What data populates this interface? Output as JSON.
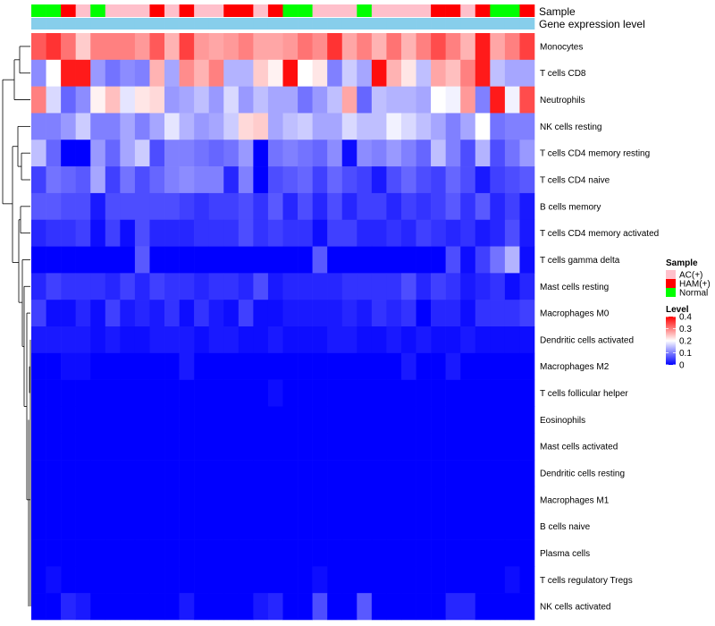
{
  "chart_data": {
    "type": "heatmap",
    "annotation_labels": {
      "sample": "Sample",
      "expression": "Gene expression level"
    },
    "rows": [
      "Monocytes",
      "T cells CD8",
      "Neutrophils",
      "NK cells resting",
      "T cells CD4 memory resting",
      "T cells CD4 naive",
      "B cells memory",
      "T cells CD4 memory activated",
      "T cells gamma delta",
      "Mast cells resting",
      "Macrophages M0",
      "Dendritic cells activated",
      "Macrophages M2",
      "T cells follicular helper",
      "Eosinophils",
      "Mast cells activated",
      "Dendritic cells resting",
      "Macrophages M1",
      "B cells naive",
      "Plasma cells",
      "T cells regulatory  Tregs",
      "NK cells activated"
    ],
    "columns": 34,
    "sample_groups": [
      "N",
      "N",
      "H",
      "A",
      "N",
      "A",
      "A",
      "A",
      "H",
      "A",
      "H",
      "A",
      "A",
      "H",
      "H",
      "A",
      "H",
      "N",
      "N",
      "A",
      "A",
      "A",
      "N",
      "A",
      "A",
      "A",
      "A",
      "H",
      "H",
      "A",
      "H",
      "N",
      "N",
      "H"
    ],
    "expression_level_colors": [
      "#87ceeb",
      "#87ceeb",
      "#87ceeb",
      "#87ceeb",
      "#87ceeb",
      "#87ceeb",
      "#87ceeb",
      "#87ceeb",
      "#87ceeb",
      "#87ceeb",
      "#87ceeb",
      "#87ceeb",
      "#87ceeb",
      "#87ceeb",
      "#87ceeb",
      "#87ceeb",
      "#87ceeb",
      "#87ceeb",
      "#87ceeb",
      "#87ceeb",
      "#87ceeb",
      "#87ceeb",
      "#87ceeb",
      "#87ceeb",
      "#87ceeb",
      "#87ceeb",
      "#87ceeb",
      "#87ceeb",
      "#87ceeb",
      "#87ceeb",
      "#87ceeb",
      "#87ceeb",
      "#87ceeb",
      "#87ceeb"
    ],
    "values": [
      [
        0.33,
        0.36,
        0.31,
        0.24,
        0.3,
        0.3,
        0.3,
        0.28,
        0.33,
        0.26,
        0.35,
        0.28,
        0.27,
        0.28,
        0.3,
        0.27,
        0.27,
        0.28,
        0.31,
        0.29,
        0.36,
        0.27,
        0.3,
        0.26,
        0.31,
        0.26,
        0.3,
        0.34,
        0.3,
        0.26,
        0.38,
        0.27,
        0.3,
        0.35
      ],
      [
        0.11,
        0.2,
        0.38,
        0.38,
        0.12,
        0.09,
        0.11,
        0.1,
        0.26,
        0.13,
        0.29,
        0.26,
        0.3,
        0.14,
        0.14,
        0.24,
        0.21,
        0.39,
        0.2,
        0.22,
        0.1,
        0.16,
        0.13,
        0.39,
        0.26,
        0.22,
        0.15,
        0.27,
        0.25,
        0.3,
        0.38,
        0.15,
        0.13,
        0.13
      ],
      [
        0.3,
        0.17,
        0.08,
        0.11,
        0.21,
        0.25,
        0.18,
        0.22,
        0.23,
        0.12,
        0.13,
        0.15,
        0.12,
        0.17,
        0.12,
        0.15,
        0.13,
        0.13,
        0.09,
        0.12,
        0.15,
        0.27,
        0.08,
        0.15,
        0.14,
        0.14,
        0.13,
        0.2,
        0.19,
        0.28,
        0.1,
        0.38,
        0.19,
        0.34
      ],
      [
        0.1,
        0.1,
        0.12,
        0.16,
        0.1,
        0.1,
        0.13,
        0.1,
        0.13,
        0.18,
        0.14,
        0.12,
        0.13,
        0.16,
        0.23,
        0.24,
        0.13,
        0.15,
        0.16,
        0.13,
        0.13,
        0.17,
        0.15,
        0.15,
        0.19,
        0.17,
        0.15,
        0.13,
        0.1,
        0.13,
        0.2,
        0.09,
        0.1,
        0.1
      ],
      [
        0.15,
        0.08,
        0.0,
        0.0,
        0.12,
        0.08,
        0.13,
        0.16,
        0.06,
        0.1,
        0.1,
        0.09,
        0.08,
        0.09,
        0.12,
        0.0,
        0.09,
        0.1,
        0.09,
        0.08,
        0.11,
        0.01,
        0.11,
        0.1,
        0.12,
        0.1,
        0.08,
        0.15,
        0.1,
        0.06,
        0.14,
        0.06,
        0.09,
        0.12
      ],
      [
        0.05,
        0.09,
        0.08,
        0.07,
        0.13,
        0.05,
        0.09,
        0.06,
        0.08,
        0.1,
        0.11,
        0.1,
        0.1,
        0.03,
        0.1,
        0.0,
        0.06,
        0.07,
        0.08,
        0.05,
        0.08,
        0.06,
        0.05,
        0.02,
        0.06,
        0.08,
        0.06,
        0.05,
        0.08,
        0.06,
        0.02,
        0.05,
        0.06,
        0.07
      ],
      [
        0.07,
        0.07,
        0.06,
        0.06,
        0.02,
        0.06,
        0.06,
        0.06,
        0.06,
        0.06,
        0.05,
        0.04,
        0.05,
        0.05,
        0.06,
        0.04,
        0.07,
        0.03,
        0.06,
        0.03,
        0.06,
        0.03,
        0.05,
        0.05,
        0.03,
        0.05,
        0.04,
        0.05,
        0.07,
        0.04,
        0.07,
        0.03,
        0.05,
        0.02
      ],
      [
        0.03,
        0.04,
        0.04,
        0.05,
        0.01,
        0.05,
        0.01,
        0.06,
        0.03,
        0.03,
        0.03,
        0.04,
        0.04,
        0.04,
        0.06,
        0.04,
        0.05,
        0.04,
        0.04,
        0.01,
        0.05,
        0.05,
        0.03,
        0.03,
        0.04,
        0.03,
        0.05,
        0.04,
        0.03,
        0.04,
        0.02,
        0.03,
        0.06,
        0.02
      ],
      [
        0.0,
        0.0,
        0.0,
        0.0,
        0.0,
        0.0,
        0.0,
        0.07,
        0.0,
        0.0,
        0.0,
        0.0,
        0.0,
        0.0,
        0.0,
        0.0,
        0.0,
        0.0,
        0.0,
        0.07,
        0.0,
        0.0,
        0.0,
        0.0,
        0.0,
        0.0,
        0.0,
        0.0,
        0.06,
        0.01,
        0.05,
        0.09,
        0.14,
        0.01
      ],
      [
        0.03,
        0.05,
        0.04,
        0.04,
        0.04,
        0.03,
        0.05,
        0.03,
        0.05,
        0.04,
        0.04,
        0.03,
        0.04,
        0.04,
        0.03,
        0.06,
        0.02,
        0.03,
        0.03,
        0.03,
        0.03,
        0.04,
        0.04,
        0.04,
        0.04,
        0.06,
        0.03,
        0.05,
        0.04,
        0.02,
        0.03,
        0.04,
        0.01,
        0.03
      ],
      [
        0.05,
        0.01,
        0.01,
        0.03,
        0.01,
        0.05,
        0.02,
        0.03,
        0.02,
        0.04,
        0.01,
        0.04,
        0.02,
        0.01,
        0.05,
        0.01,
        0.01,
        0.02,
        0.02,
        0.02,
        0.02,
        0.03,
        0.02,
        0.04,
        0.03,
        0.04,
        0.0,
        0.03,
        0.03,
        0.01,
        0.04,
        0.04,
        0.04,
        0.05
      ],
      [
        0.02,
        0.02,
        0.02,
        0.02,
        0.01,
        0.02,
        0.01,
        0.01,
        0.02,
        0.02,
        0.02,
        0.01,
        0.02,
        0.02,
        0.01,
        0.01,
        0.02,
        0.01,
        0.01,
        0.01,
        0.02,
        0.02,
        0.01,
        0.01,
        0.02,
        0.01,
        0.02,
        0.01,
        0.01,
        0.02,
        0.01,
        0.01,
        0.01,
        0.01
      ],
      [
        0.0,
        0.0,
        0.01,
        0.01,
        0.0,
        0.0,
        0.0,
        0.0,
        0.0,
        0.0,
        0.02,
        0.0,
        0.0,
        0.0,
        0.0,
        0.0,
        0.0,
        0.0,
        0.0,
        0.0,
        0.0,
        0.0,
        0.0,
        0.0,
        0.0,
        0.02,
        0.0,
        0.0,
        0.02,
        0.0,
        0.0,
        0.0,
        0.0,
        0.0
      ],
      [
        0.0,
        0.0,
        0.0,
        0.0,
        0.0,
        0.0,
        0.0,
        0.0,
        0.0,
        0.0,
        0.0,
        0.0,
        0.0,
        0.0,
        0.0,
        0.0,
        0.01,
        0.0,
        0.0,
        0.0,
        0.0,
        0.0,
        0.0,
        0.0,
        0.0,
        0.0,
        0.0,
        0.0,
        0.0,
        0.0,
        0.0,
        0.0,
        0.0,
        0.0
      ],
      [
        0.0,
        0.0,
        0.0,
        0.0,
        0.0,
        0.0,
        0.0,
        0.0,
        0.0,
        0.0,
        0.0,
        0.0,
        0.0,
        0.0,
        0.0,
        0.0,
        0.0,
        0.0,
        0.0,
        0.0,
        0.0,
        0.0,
        0.0,
        0.0,
        0.0,
        0.0,
        0.0,
        0.0,
        0.0,
        0.0,
        0.0,
        0.0,
        0.0,
        0.0
      ],
      [
        0.0,
        0.0,
        0.0,
        0.0,
        0.0,
        0.0,
        0.0,
        0.0,
        0.0,
        0.0,
        0.0,
        0.0,
        0.0,
        0.0,
        0.0,
        0.0,
        0.0,
        0.0,
        0.0,
        0.0,
        0.0,
        0.0,
        0.0,
        0.0,
        0.0,
        0.0,
        0.0,
        0.0,
        0.0,
        0.0,
        0.0,
        0.0,
        0.0,
        0.0
      ],
      [
        0.0,
        0.0,
        0.0,
        0.0,
        0.0,
        0.0,
        0.0,
        0.0,
        0.0,
        0.0,
        0.0,
        0.0,
        0.0,
        0.0,
        0.0,
        0.0,
        0.0,
        0.0,
        0.0,
        0.0,
        0.0,
        0.0,
        0.0,
        0.0,
        0.0,
        0.0,
        0.0,
        0.0,
        0.0,
        0.0,
        0.0,
        0.0,
        0.0,
        0.0
      ],
      [
        0.0,
        0.0,
        0.0,
        0.0,
        0.0,
        0.0,
        0.0,
        0.0,
        0.0,
        0.0,
        0.0,
        0.0,
        0.0,
        0.0,
        0.0,
        0.0,
        0.0,
        0.0,
        0.0,
        0.0,
        0.0,
        0.0,
        0.0,
        0.0,
        0.0,
        0.0,
        0.0,
        0.0,
        0.0,
        0.0,
        0.0,
        0.0,
        0.0,
        0.0
      ],
      [
        0.0,
        0.0,
        0.0,
        0.0,
        0.0,
        0.0,
        0.0,
        0.0,
        0.0,
        0.0,
        0.0,
        0.0,
        0.0,
        0.0,
        0.0,
        0.0,
        0.0,
        0.0,
        0.0,
        0.0,
        0.0,
        0.0,
        0.0,
        0.0,
        0.0,
        0.0,
        0.0,
        0.0,
        0.0,
        0.0,
        0.0,
        0.0,
        0.0,
        0.0
      ],
      [
        0.0,
        0.0,
        0.0,
        0.0,
        0.0,
        0.0,
        0.0,
        0.0,
        0.0,
        0.0,
        0.0,
        0.0,
        0.0,
        0.0,
        0.0,
        0.0,
        0.0,
        0.0,
        0.0,
        0.0,
        0.0,
        0.0,
        0.0,
        0.0,
        0.0,
        0.0,
        0.0,
        0.0,
        0.0,
        0.0,
        0.0,
        0.0,
        0.0,
        0.0
      ],
      [
        0.0,
        0.01,
        0.0,
        0.0,
        0.0,
        0.0,
        0.0,
        0.0,
        0.0,
        0.0,
        0.0,
        0.0,
        0.0,
        0.0,
        0.0,
        0.0,
        0.0,
        0.0,
        0.0,
        0.01,
        0.0,
        0.0,
        0.0,
        0.0,
        0.0,
        0.0,
        0.0,
        0.0,
        0.0,
        0.0,
        0.0,
        0.0,
        0.01,
        0.0
      ],
      [
        0.0,
        0.0,
        0.03,
        0.02,
        0.0,
        0.0,
        0.0,
        0.0,
        0.0,
        0.0,
        0.02,
        0.0,
        0.0,
        0.0,
        0.0,
        0.02,
        0.03,
        0.0,
        0.0,
        0.06,
        0.0,
        0.0,
        0.07,
        0.0,
        0.0,
        0.0,
        0.0,
        0.0,
        0.03,
        0.03,
        0.0,
        0.0,
        0.0,
        0.0
      ]
    ],
    "legend": {
      "sample_title": "Sample",
      "sample_entries": [
        {
          "key": "A",
          "label": "AC(+)",
          "color": "#ffc0cb"
        },
        {
          "key": "H",
          "label": "HAM(+)",
          "color": "#ff0000"
        },
        {
          "key": "N",
          "label": "Normal",
          "color": "#00ff00"
        }
      ],
      "level_title": "Level",
      "level_ticks": [
        "0.4",
        "0.3",
        "0.2",
        "0.1",
        "0"
      ],
      "level_tick_values": [
        0.4,
        0.3,
        0.2,
        0.1,
        0
      ],
      "level_range": [
        0,
        0.4
      ],
      "colors": {
        "low": "#0000ff",
        "mid": "#ffffff",
        "high": "#ff0000"
      }
    },
    "legend_position": "right"
  }
}
